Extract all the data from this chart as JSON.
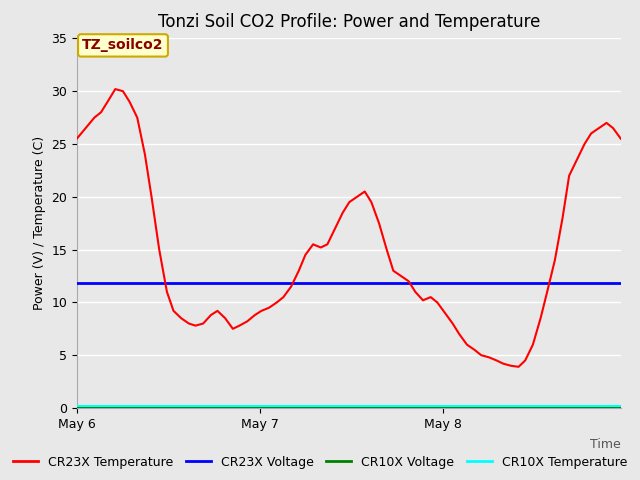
{
  "title": "Tonzi Soil CO2 Profile: Power and Temperature",
  "ylabel": "Power (V) / Temperature (C)",
  "xlabel": "Time",
  "ylim": [
    0,
    35
  ],
  "fig_bg_color": "#e8e8e8",
  "plot_bg_color": "#e8e8e8",
  "annotation_text": "TZ_soilco2",
  "annotation_text_color": "#880000",
  "annotation_bg": "#ffffcc",
  "annotation_edge_color": "#ccaa00",
  "blue_line_value": 11.8,
  "green_line_value": 0.0,
  "cyan_line_value": 0.15,
  "red_x": [
    0.0,
    0.08,
    0.16,
    0.22,
    0.28,
    0.35,
    0.42,
    0.48,
    0.55,
    0.62,
    0.68,
    0.75,
    0.82,
    0.88,
    0.95,
    1.02,
    1.08,
    1.15,
    1.22,
    1.28,
    1.35,
    1.42,
    1.48,
    1.55,
    1.62,
    1.68,
    1.75,
    1.82,
    1.88,
    1.95,
    2.02,
    2.08,
    2.15,
    2.22,
    2.28,
    2.35,
    2.42,
    2.48,
    2.55,
    2.62,
    2.68,
    2.75,
    2.82,
    2.88,
    2.95,
    3.02,
    3.08,
    3.15,
    3.22,
    3.28,
    3.35,
    3.42,
    3.48,
    3.55,
    3.62,
    3.68,
    3.75,
    3.82,
    3.88,
    3.95,
    4.02,
    4.08,
    4.15,
    4.22,
    4.28,
    4.35,
    4.42,
    4.48,
    4.55,
    4.62,
    4.68,
    4.75,
    4.82,
    4.88,
    4.95
  ],
  "red_y": [
    25.5,
    26.5,
    27.5,
    28.0,
    29.0,
    30.2,
    30.0,
    29.0,
    27.5,
    24.0,
    20.0,
    15.0,
    11.0,
    9.2,
    8.5,
    8.0,
    7.8,
    8.0,
    8.8,
    9.2,
    8.5,
    7.5,
    7.8,
    8.2,
    8.8,
    9.2,
    9.5,
    10.0,
    10.5,
    11.5,
    13.0,
    14.5,
    15.5,
    15.2,
    15.5,
    17.0,
    18.5,
    19.5,
    20.0,
    20.5,
    19.5,
    17.5,
    15.0,
    13.0,
    12.5,
    12.0,
    11.0,
    10.2,
    10.5,
    10.0,
    9.0,
    8.0,
    7.0,
    6.0,
    5.5,
    5.0,
    4.8,
    4.5,
    4.2,
    4.0,
    3.9,
    4.5,
    6.0,
    8.5,
    11.0,
    14.0,
    18.0,
    22.0,
    23.5,
    25.0,
    26.0,
    26.5,
    27.0,
    26.5,
    25.5
  ],
  "xtick_positions": [
    0.0,
    1.667,
    3.333
  ],
  "xtick_labels": [
    "May 6",
    "May 7",
    "May 8"
  ],
  "xlim": [
    0.0,
    4.95
  ],
  "legend_labels": [
    "CR23X Temperature",
    "CR23X Voltage",
    "CR10X Voltage",
    "CR10X Temperature"
  ],
  "legend_colors": [
    "red",
    "blue",
    "green",
    "cyan"
  ],
  "title_fontsize": 12,
  "tick_fontsize": 9,
  "label_fontsize": 9,
  "legend_fontsize": 9
}
